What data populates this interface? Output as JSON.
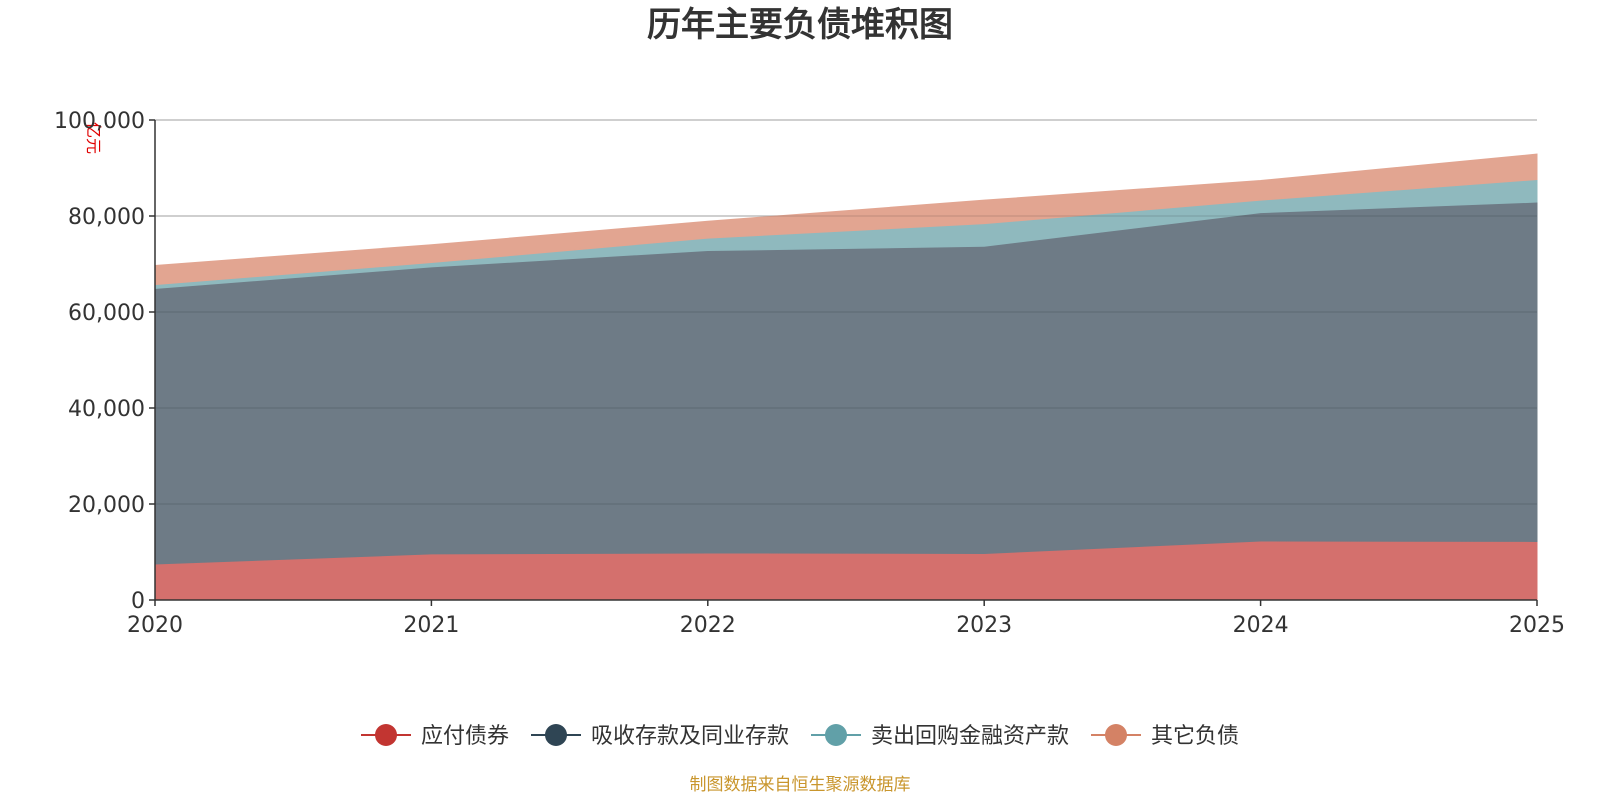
{
  "chart_data": {
    "type": "area",
    "stacked": true,
    "title": "历年主要负债堆积图",
    "unit_label": "亿元",
    "x": [
      "2020",
      "2021",
      "2022",
      "2023",
      "2024",
      "2025"
    ],
    "ylim": [
      0,
      100000
    ],
    "yticks": [
      0,
      20000,
      40000,
      60000,
      80000,
      100000
    ],
    "ytick_labels": [
      "0",
      "20,000",
      "40,000",
      "60,000",
      "80,000",
      "100,000"
    ],
    "grid": true,
    "legend_position": "bottom-center",
    "series": [
      {
        "name": "应付债券",
        "color": "#c23531",
        "fill": "#d4706d",
        "values": [
          7500,
          9600,
          9800,
          9700,
          12300,
          12200
        ]
      },
      {
        "name": "吸收存款及同业存款",
        "color": "#2f4554",
        "fill": "#6e7b86",
        "values": [
          57400,
          59800,
          63000,
          64000,
          68400,
          70700
        ]
      },
      {
        "name": "卖出回购金融资产款",
        "color": "#61a0a8",
        "fill": "#8fb9be",
        "values": [
          800,
          900,
          2600,
          4700,
          2600,
          4700
        ]
      },
      {
        "name": "其它负债",
        "color": "#d48265",
        "fill": "#e2a591",
        "values": [
          4000,
          3700,
          3500,
          4900,
          4100,
          5300
        ]
      }
    ],
    "source": "制图数据来自恒生聚源数据库",
    "source_color": "#c9962d"
  }
}
